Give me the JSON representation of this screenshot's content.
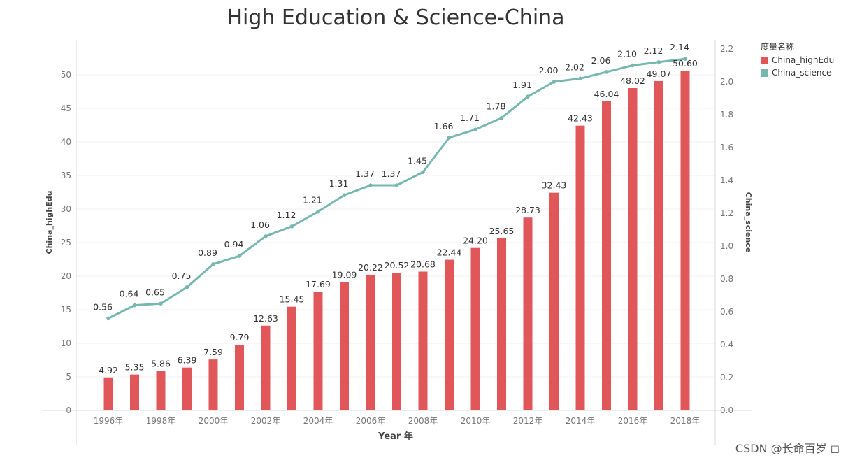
{
  "chart_data": {
    "type": "bar",
    "title": "High Education & Science-China",
    "xlabel": "Year 年",
    "ylabel_left": "China_highEdu",
    "ylabel_right": "China_science",
    "x": [
      "1996",
      "1997",
      "1998",
      "1999",
      "2000",
      "2001",
      "2002",
      "2003",
      "2004",
      "2005",
      "2006",
      "2007",
      "2008",
      "2009",
      "2010",
      "2011",
      "2012",
      "2013",
      "2014",
      "2015",
      "2016",
      "2017",
      "2018"
    ],
    "x_tick_labels": [
      "1996年",
      "1998年",
      "2000年",
      "2002年",
      "2004年",
      "2006年",
      "2008年",
      "2010年",
      "2012年",
      "2014年",
      "2016年",
      "2018年"
    ],
    "series": [
      {
        "name": "China_highEdu",
        "type": "bar",
        "axis": "left",
        "color": "#E15759",
        "values": [
          4.92,
          5.35,
          5.86,
          6.39,
          7.59,
          9.79,
          12.63,
          15.45,
          17.69,
          19.09,
          20.22,
          20.52,
          20.68,
          22.44,
          24.2,
          25.65,
          28.73,
          32.43,
          42.43,
          46.04,
          48.02,
          49.07,
          50.6
        ],
        "labels": [
          "4.92",
          "5.35",
          "5.86",
          "6.39",
          "7.59",
          "9.79",
          "12.63",
          "15.45",
          "17.69",
          "19.09",
          "20.22",
          "20.52",
          "20.68",
          "22.44",
          "24.20",
          "25.65",
          "28.73",
          "32.43",
          "42.43",
          "46.04",
          "48.02",
          "49.07",
          "50.60"
        ]
      },
      {
        "name": "China_science",
        "type": "line",
        "axis": "right",
        "color": "#76B7B2",
        "values": [
          0.56,
          0.64,
          0.65,
          0.75,
          0.89,
          0.94,
          1.06,
          1.12,
          1.21,
          1.31,
          1.37,
          1.37,
          1.45,
          1.66,
          1.71,
          1.78,
          1.91,
          2.0,
          2.02,
          2.06,
          2.1,
          2.12,
          2.14
        ],
        "labels": [
          "0.56",
          "0.64",
          "0.65",
          "0.75",
          "0.89",
          "0.94",
          "1.06",
          "1.12",
          "1.21",
          "1.31",
          "1.37",
          "1.37",
          "1.45",
          "1.66",
          "1.71",
          "1.78",
          "1.91",
          "2.00",
          "2.02",
          "2.06",
          "2.10",
          "2.12",
          "2.14"
        ]
      }
    ],
    "ylim_left": [
      0,
      55
    ],
    "ylim_right": [
      0,
      2.25
    ],
    "yticks_left": [
      "0",
      "5",
      "10",
      "15",
      "20",
      "25",
      "30",
      "35",
      "40",
      "45",
      "50"
    ],
    "yticks_right": [
      "0.0",
      "0.2",
      "0.4",
      "0.6",
      "0.8",
      "1.0",
      "1.2",
      "1.4",
      "1.6",
      "1.8",
      "2.0",
      "2.2"
    ],
    "grid": true,
    "legend": {
      "title": "度量名称",
      "position": "top-right"
    }
  },
  "watermark": "CSDN @长命百岁 ◻"
}
